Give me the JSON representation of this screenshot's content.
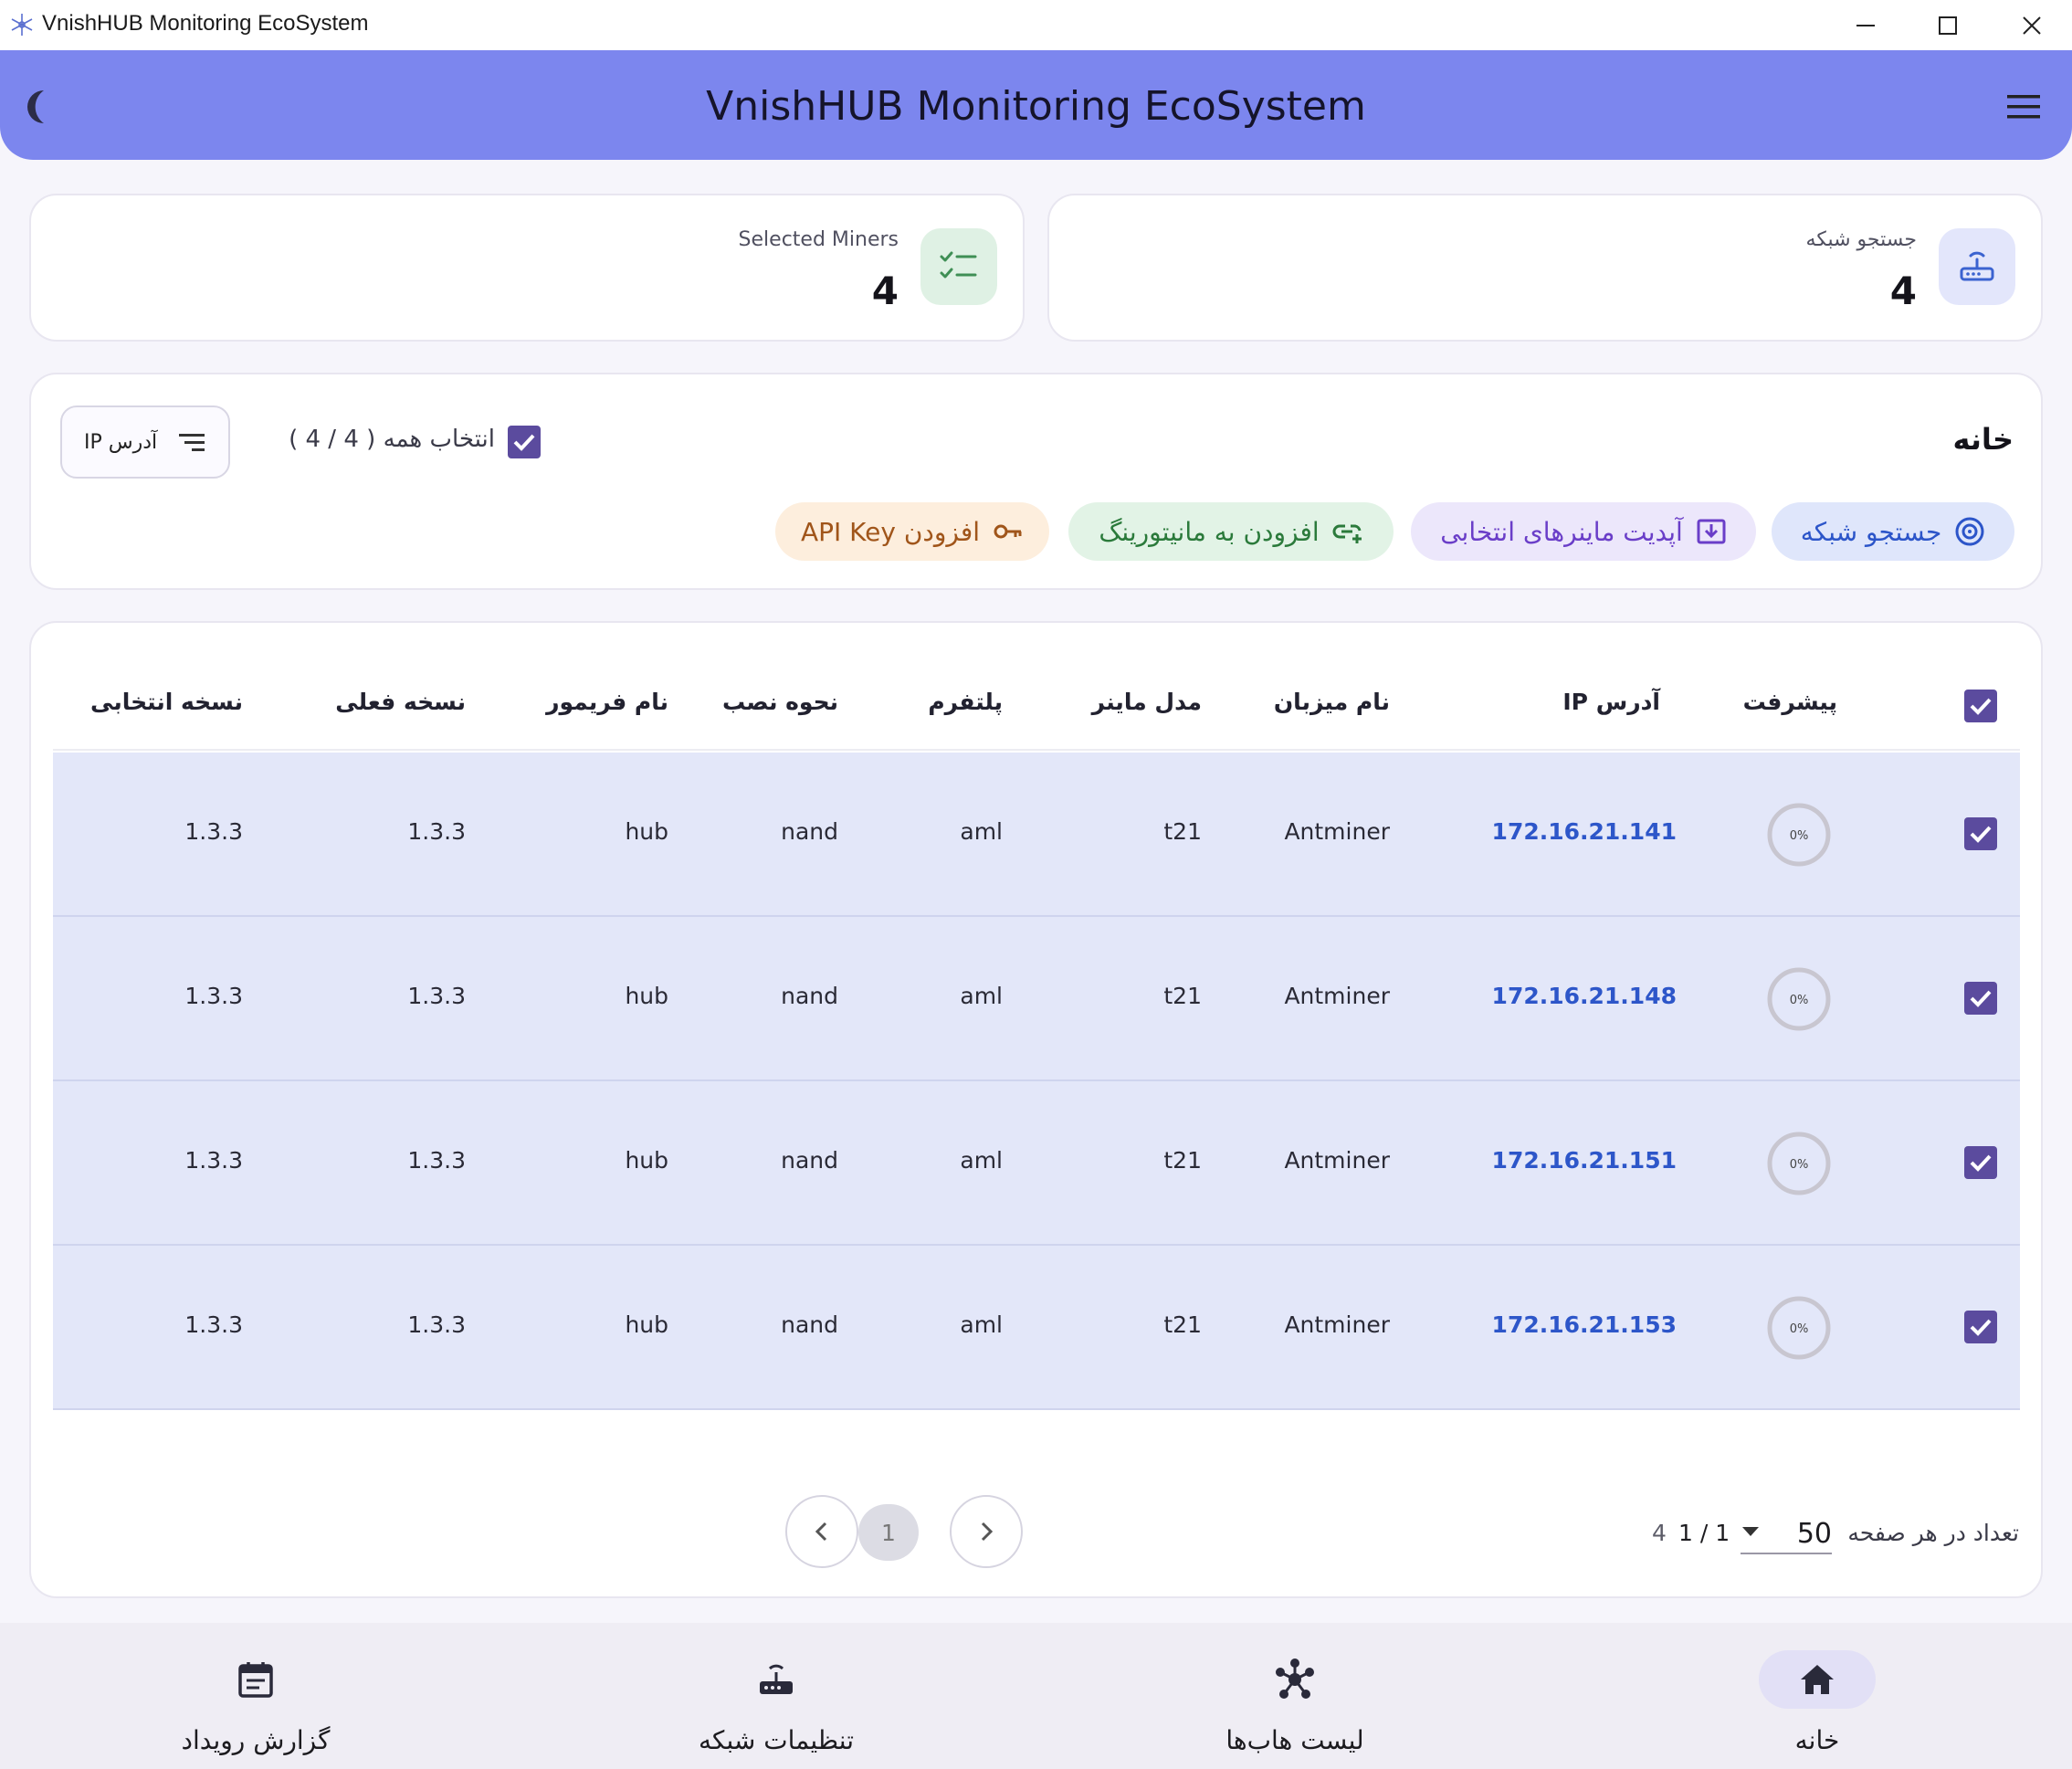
{
  "window": {
    "title": "VnishHUB Monitoring EcoSystem",
    "minimize": "—",
    "maximize": "☐",
    "close": "✕"
  },
  "appbar": {
    "title": "VnishHUB Monitoring EcoSystem",
    "theme_icon": "moon-icon",
    "menu_icon": "hamburger-menu-icon"
  },
  "stats": {
    "selected_miners": {
      "label": "Selected Miners",
      "value": "4",
      "icon": "checklist-icon"
    },
    "network_search": {
      "label": "جستجو شبکه",
      "value": "4",
      "icon": "router-icon"
    }
  },
  "actions": {
    "heading": "خانه",
    "select_all_label": "انتخاب همه ( 4 / 4 )",
    "sort_label": "آدرس IP",
    "buttons": {
      "network_search": "جستجو شبکه",
      "update_selected": "آپدیت ماینرهای انتخابی",
      "add_monitoring": "افزودن به مانیتورینگ",
      "add_api_key": "افزودن API Key"
    }
  },
  "table": {
    "columns": {
      "progress": "پیشرفت",
      "ip": "آدرس IP",
      "host": "نام میزبان",
      "model": "مدل ماینر",
      "platform": "پلتفرم",
      "install": "نحوه نصب",
      "firmware": "نام فریمور",
      "current_version": "نسخه فعلی",
      "selected_version": "نسخه انتخابی"
    },
    "rows": [
      {
        "progress": "0%",
        "ip": "172.16.21.141",
        "host": "Antminer",
        "model": "t21",
        "platform": "aml",
        "install": "nand",
        "firmware": "hub",
        "current_version": "1.3.3",
        "selected_version": "1.3.3"
      },
      {
        "progress": "0%",
        "ip": "172.16.21.148",
        "host": "Antminer",
        "model": "t21",
        "platform": "aml",
        "install": "nand",
        "firmware": "hub",
        "current_version": "1.3.3",
        "selected_version": "1.3.3"
      },
      {
        "progress": "0%",
        "ip": "172.16.21.151",
        "host": "Antminer",
        "model": "t21",
        "platform": "aml",
        "install": "nand",
        "firmware": "hub",
        "current_version": "1.3.3",
        "selected_version": "1.3.3"
      },
      {
        "progress": "0%",
        "ip": "172.16.21.153",
        "host": "Antminer",
        "model": "t21",
        "platform": "aml",
        "install": "nand",
        "firmware": "hub",
        "current_version": "1.3.3",
        "selected_version": "1.3.3"
      }
    ]
  },
  "pagination": {
    "current_page": "1",
    "rows_per_page_label": "تعداد در هر صفحه",
    "rows_per_page": "50",
    "page_of": "1 / 1",
    "total": "4"
  },
  "bottom_nav": {
    "home": "خانه",
    "hubs": "لیست هاب‌ها",
    "network_settings": "تنظیمات شبکه",
    "event_log": "گزارش رویداد"
  },
  "colors": {
    "appbar": "#7c86ee",
    "row_bg": "#e3e7f9",
    "checkbox": "#5b4b9e",
    "ip_link": "#2d56c9"
  }
}
